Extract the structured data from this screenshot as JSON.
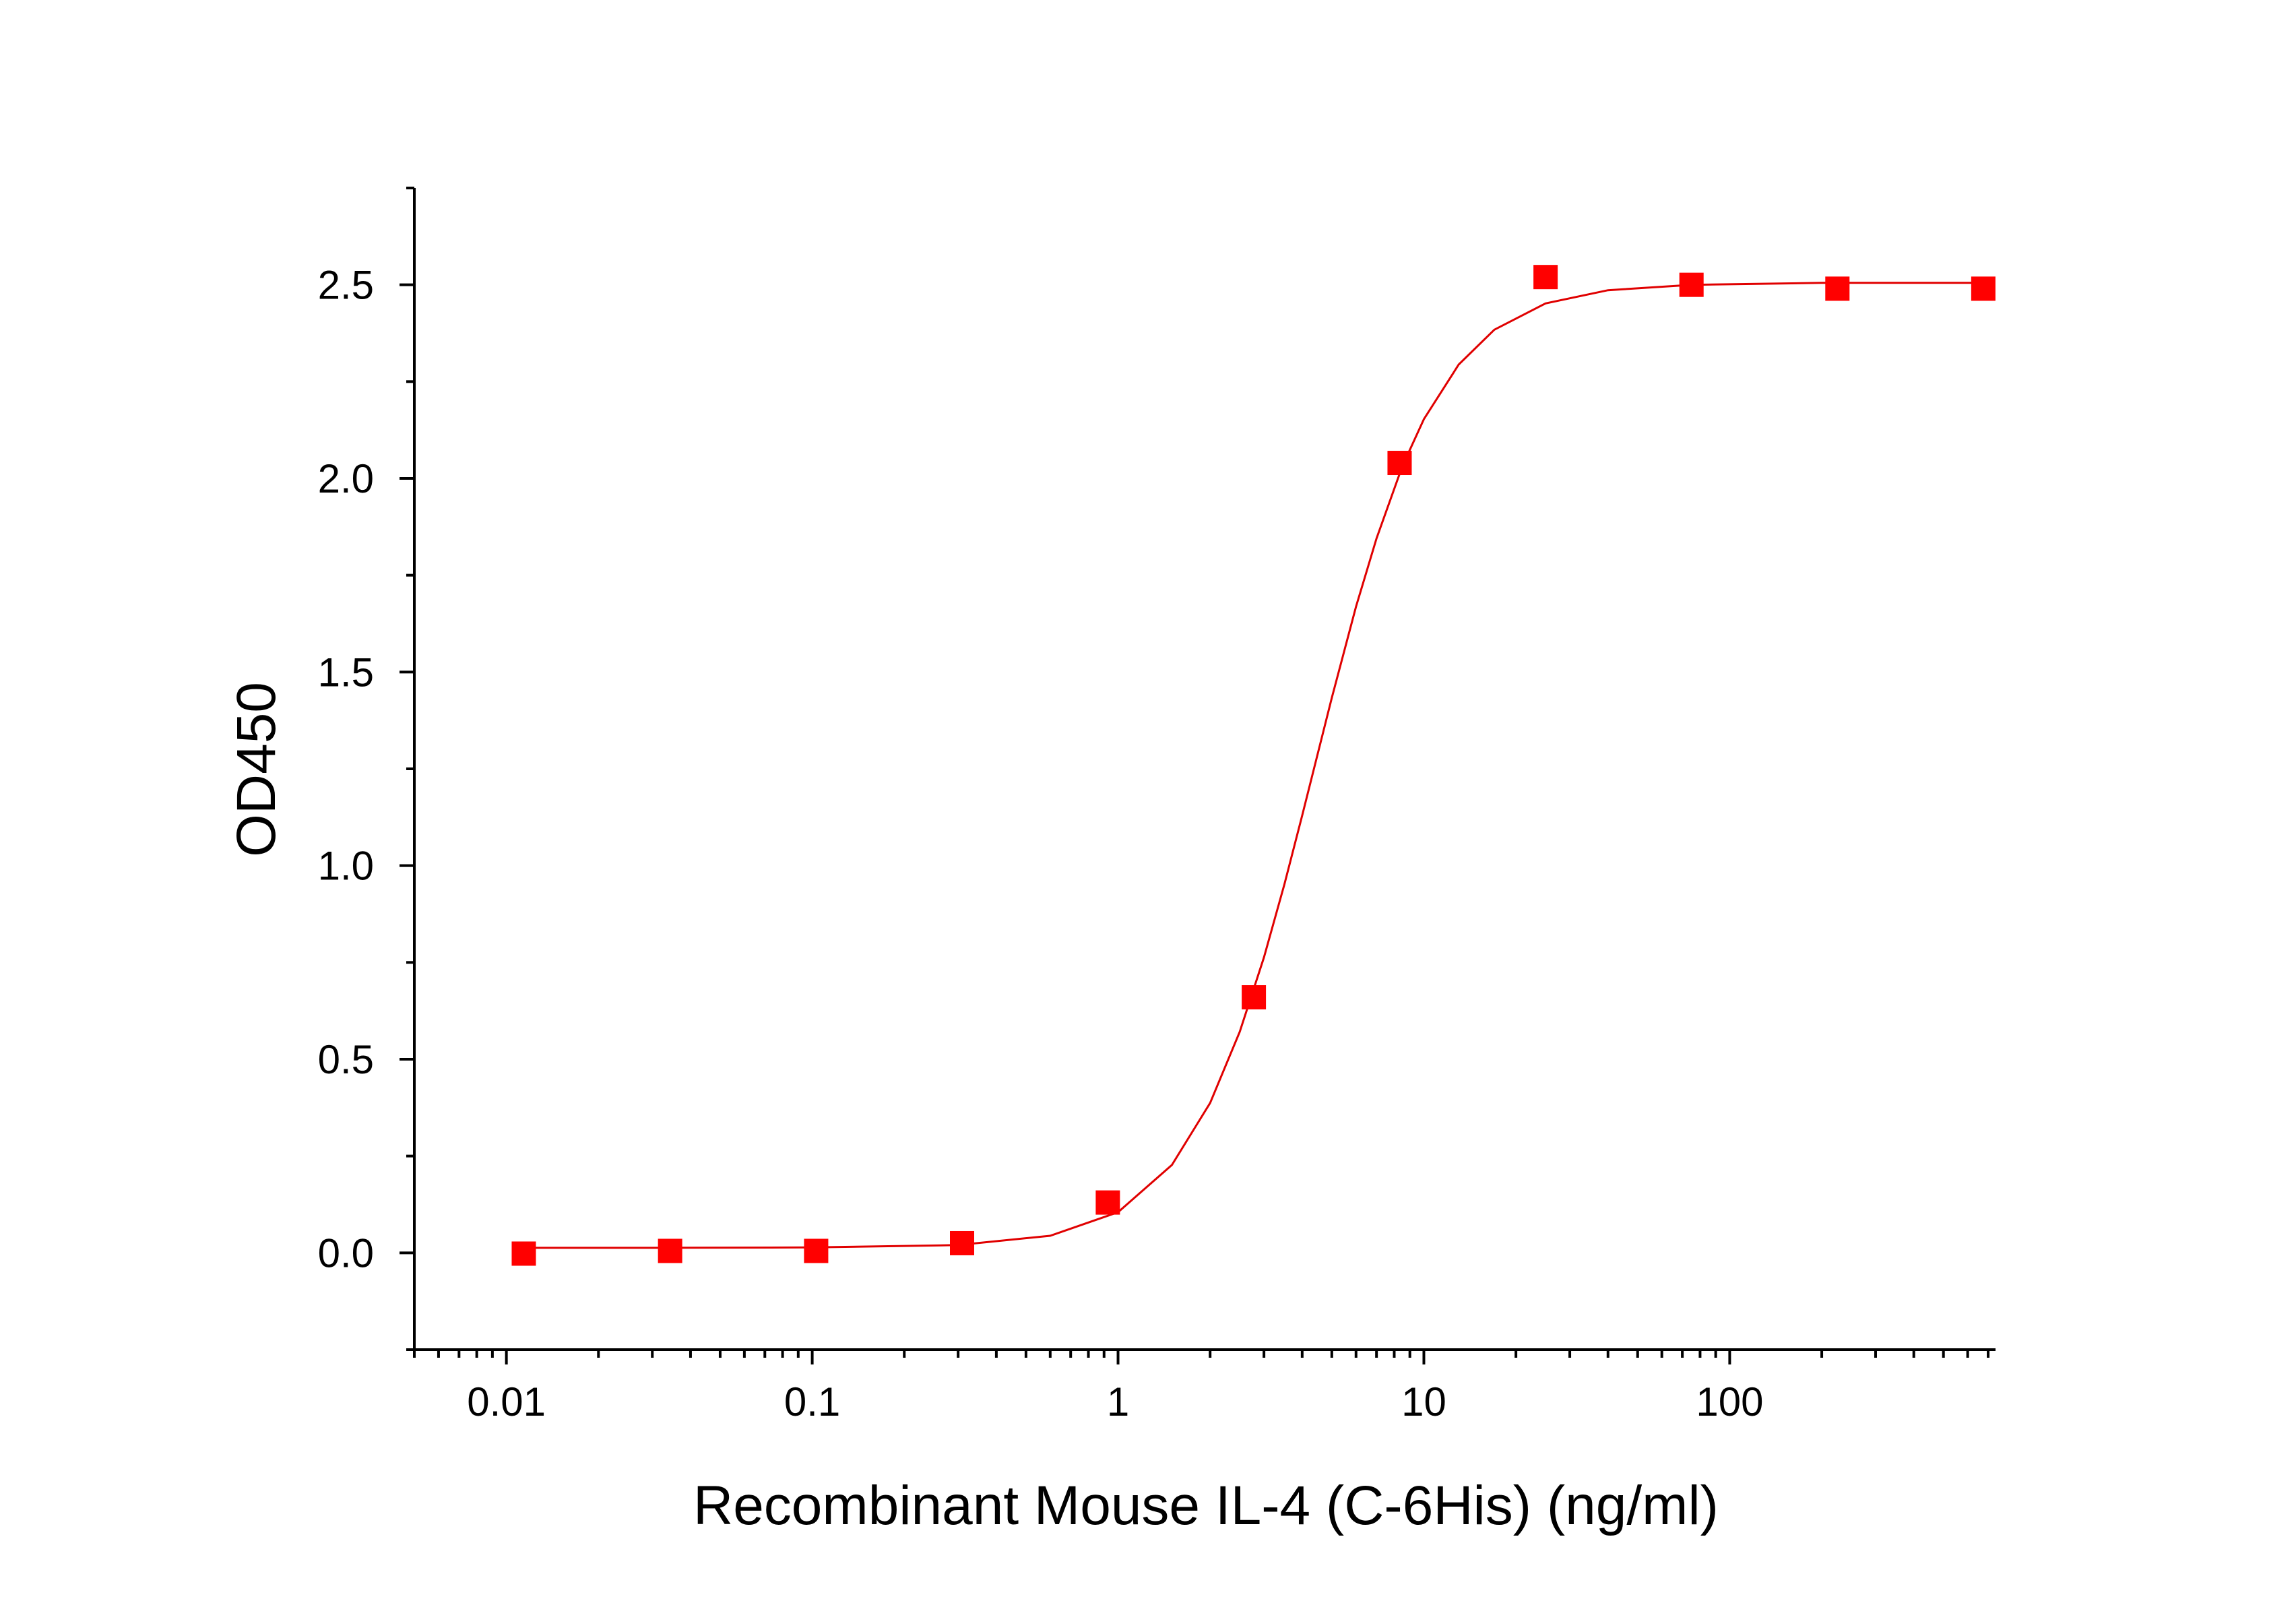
{
  "chart_data": {
    "type": "scatter",
    "x_label": "Recombinant Mouse IL-4 (C-6His) (ng/ml)",
    "y_label": "OD450",
    "xscale": "log",
    "xlim": [
      0.005,
      740
    ],
    "ylim": [
      -0.25,
      2.75
    ],
    "xticks": [
      0.01,
      0.1,
      1,
      10,
      100
    ],
    "xminorticks": [
      0.005,
      0.006,
      0.007,
      0.008,
      0.009,
      0.02,
      0.03,
      0.04,
      0.05,
      0.06,
      0.07,
      0.08,
      0.09,
      0.2,
      0.3,
      0.4,
      0.5,
      0.6,
      0.7,
      0.8,
      0.9,
      2,
      3,
      4,
      5,
      6,
      7,
      8,
      9,
      20,
      30,
      40,
      50,
      60,
      70,
      80,
      90,
      200,
      300,
      400,
      500,
      600,
      700
    ],
    "yticks": [
      {
        "value": 0,
        "label": "0.0"
      },
      0.5,
      {
        "value": 1,
        "label": "1.0"
      },
      1.5,
      {
        "value": 2,
        "label": "2.0"
      },
      2.5
    ],
    "yminorticks": [
      -0.25,
      0.25,
      0.75,
      1.25,
      1.75,
      2.25,
      2.75
    ],
    "series": [
      {
        "color": "#ff0000",
        "marker": "square",
        "x": [
          0.0114,
          0.0343,
          0.103,
          0.309,
          0.926,
          2.78,
          8.33,
          25,
          75,
          225,
          675
        ],
        "values": [
          -0.002,
          0.005,
          0.005,
          0.025,
          0.13,
          0.66,
          2.04,
          2.52,
          2.5,
          2.49,
          2.49
        ]
      },
      {
        "color": "#e00000",
        "line": true,
        "x": [
          0.0114,
          0.03,
          0.1,
          0.3,
          0.6,
          1,
          1.5,
          2,
          2.5,
          3,
          3.5,
          4,
          5,
          6,
          7,
          8.5,
          10,
          13,
          17,
          25,
          40,
          75,
          200,
          675
        ],
        "values": [
          0.013,
          0.013,
          0.014,
          0.02,
          0.044,
          0.105,
          0.227,
          0.387,
          0.571,
          0.763,
          0.952,
          1.129,
          1.433,
          1.669,
          1.845,
          2.031,
          2.153,
          2.294,
          2.384,
          2.452,
          2.486,
          2.5,
          2.505,
          2.505
        ]
      }
    ]
  }
}
